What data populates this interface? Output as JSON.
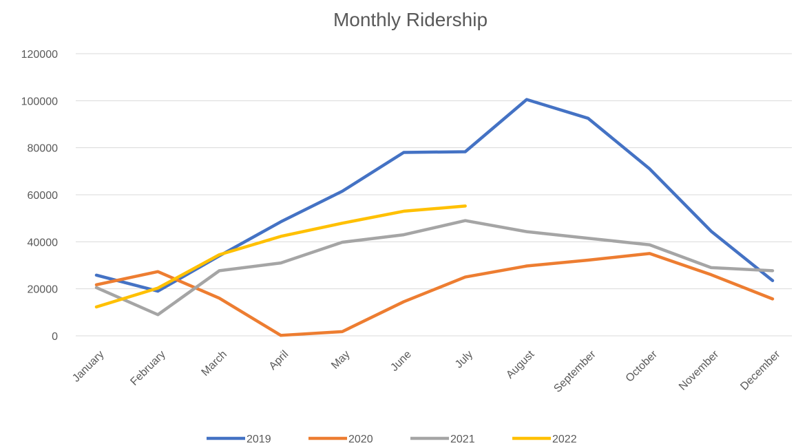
{
  "chart_data": {
    "type": "line",
    "title": "Monthly Ridership",
    "categories": [
      "January",
      "February",
      "March",
      "April",
      "May",
      "June",
      "July",
      "August",
      "September",
      "October",
      "November",
      "December"
    ],
    "series": [
      {
        "name": "2019",
        "color": "#4472c4",
        "values": [
          25800,
          19000,
          34000,
          48500,
          61500,
          78000,
          78300,
          100500,
          92500,
          71000,
          44500,
          23500
        ]
      },
      {
        "name": "2020",
        "color": "#ed7d31",
        "values": [
          21700,
          27300,
          16000,
          200,
          1800,
          14500,
          25000,
          29700,
          32200,
          35000,
          26000,
          15700
        ]
      },
      {
        "name": "2021",
        "color": "#a5a5a5",
        "values": [
          20500,
          9000,
          27700,
          31000,
          39800,
          43000,
          49000,
          44300,
          41500,
          38700,
          29000,
          27700
        ]
      },
      {
        "name": "2022",
        "color": "#ffc000",
        "values": [
          12300,
          20300,
          34500,
          42300,
          47900,
          53000,
          55200,
          null,
          null,
          null,
          null,
          null
        ]
      }
    ],
    "ylim": [
      0,
      120000
    ],
    "yticks": [
      0,
      20000,
      40000,
      60000,
      80000,
      100000,
      120000
    ],
    "grid": true,
    "legend": "bottom"
  }
}
